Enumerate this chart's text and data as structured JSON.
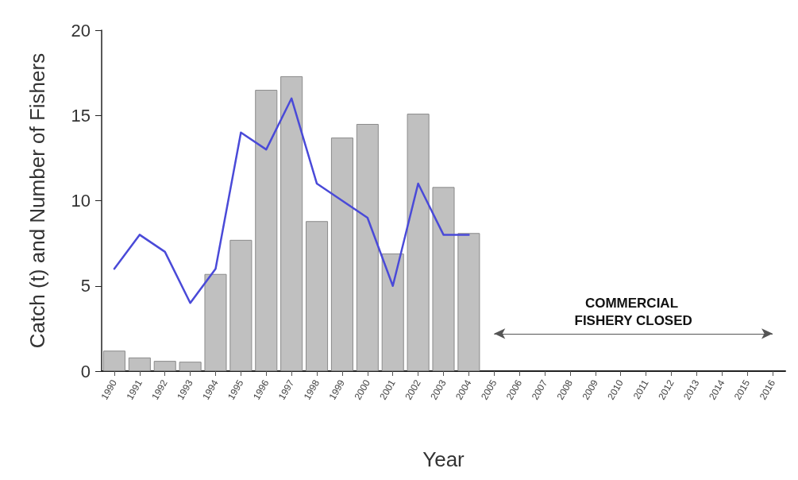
{
  "chart_data": {
    "type": "bar",
    "xlabel": "Year",
    "ylabel": "Catch (t) and Number of Fishers",
    "categories": [
      "1990",
      "1991",
      "1992",
      "1993",
      "1994",
      "1995",
      "1996",
      "1997",
      "1998",
      "1999",
      "2000",
      "2001",
      "2002",
      "2003",
      "2004",
      "2005",
      "2006",
      "2007",
      "2008",
      "2009",
      "2010",
      "2011",
      "2012",
      "2013",
      "2014",
      "2015",
      "2016"
    ],
    "series": [
      {
        "color": "#c0c0c0",
        "values": [
          1.2,
          0.8,
          0.6,
          0.55,
          5.7,
          7.7,
          16.5,
          17.3,
          8.8,
          13.7,
          14.5,
          6.9,
          15.1,
          10.8,
          8.1,
          null,
          null,
          null,
          null,
          null,
          null,
          null,
          null,
          null,
          null,
          null,
          null
        ]
      },
      {
        "type": "line",
        "color": "#4a4ad8",
        "values": [
          6,
          8,
          7,
          4,
          6,
          14,
          13,
          16,
          11,
          10,
          9,
          5,
          11,
          8,
          8,
          null,
          null,
          null,
          null,
          null,
          null,
          null,
          null,
          null,
          null,
          null,
          null
        ]
      }
    ],
    "ylim": [
      0,
      20
    ],
    "yticks": [
      0,
      5,
      10,
      15,
      20
    ],
    "annotations": [
      "COMMERCIAL FISHERY CLOSED"
    ],
    "grid": false,
    "marker": "none",
    "line_style": "solid"
  }
}
